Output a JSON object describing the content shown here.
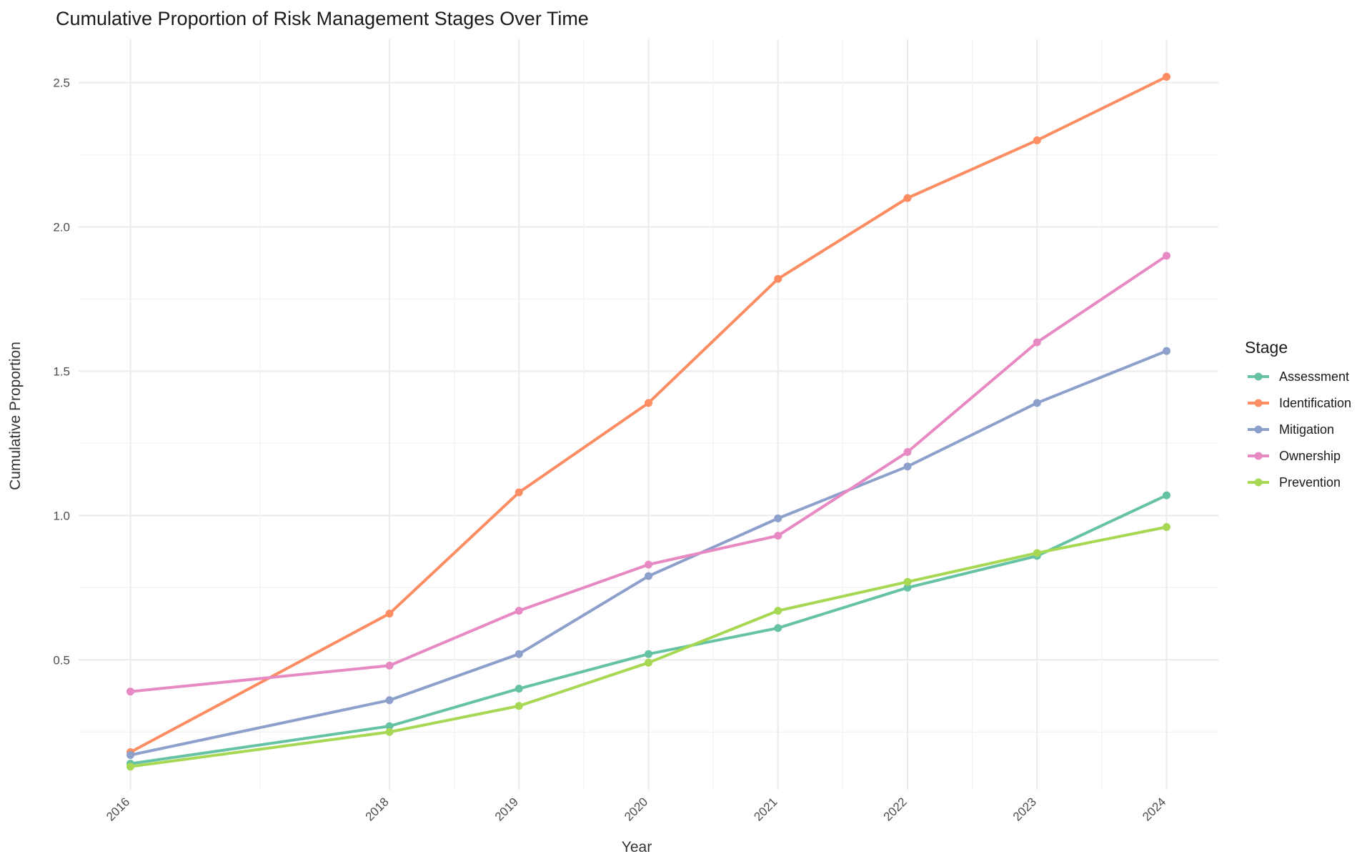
{
  "chart_data": {
    "type": "line",
    "title": "Cumulative Proportion of Risk Management Stages Over Time",
    "xlabel": "Year",
    "ylabel": "Cumulative Proportion",
    "x": [
      2016,
      2018,
      2019,
      2020,
      2021,
      2022,
      2023,
      2024
    ],
    "x_tick_labels": [
      "2016",
      "2018",
      "2019",
      "2020",
      "2021",
      "2022",
      "2023",
      "2024"
    ],
    "y_ticks": [
      0.5,
      1.0,
      1.5,
      2.0,
      2.5
    ],
    "y_tick_labels": [
      "0.5",
      "1.0",
      "1.5",
      "2.0",
      "2.5"
    ],
    "ylim": [
      0.05,
      2.65
    ],
    "grid": true,
    "legend": {
      "title": "Stage",
      "position": "right"
    },
    "series": [
      {
        "name": "Assessment",
        "color": "#66c2a5",
        "values": [
          0.14,
          0.27,
          0.4,
          0.52,
          0.61,
          0.75,
          0.86,
          1.07
        ]
      },
      {
        "name": "Identification",
        "color": "#fc8d62",
        "values": [
          0.18,
          0.66,
          1.08,
          1.39,
          1.82,
          2.1,
          2.3,
          2.52
        ]
      },
      {
        "name": "Mitigation",
        "color": "#8da0cb",
        "values": [
          0.17,
          0.36,
          0.52,
          0.79,
          0.99,
          1.17,
          1.39,
          1.57
        ]
      },
      {
        "name": "Ownership",
        "color": "#e78ac3",
        "values": [
          0.39,
          0.48,
          0.67,
          0.83,
          0.93,
          1.22,
          1.6,
          1.9
        ]
      },
      {
        "name": "Prevention",
        "color": "#a6d854",
        "values": [
          0.13,
          0.25,
          0.34,
          0.49,
          0.67,
          0.77,
          0.87,
          0.96
        ]
      }
    ]
  }
}
